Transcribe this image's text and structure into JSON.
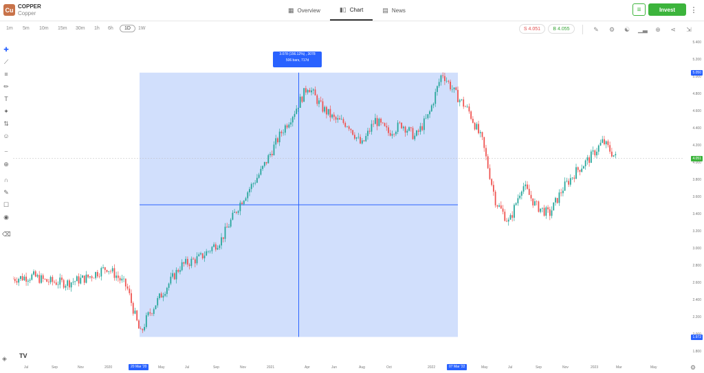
{
  "instrument": {
    "logo_text": "Cu",
    "symbol": "COPPER",
    "name": "Copper"
  },
  "nav": {
    "tabs": [
      {
        "label": "Overview",
        "icon": "grid-icon"
      },
      {
        "label": "Chart",
        "icon": "candles-icon",
        "active": true
      },
      {
        "label": "News",
        "icon": "newspaper-icon"
      }
    ]
  },
  "actions": {
    "invest_label": "Invest",
    "watchlist_icon": "add-to-watchlist-icon",
    "more_icon": "more-vertical-icon"
  },
  "timeframes": [
    "1m",
    "5m",
    "10m",
    "15m",
    "30m",
    "1h",
    "6h",
    "1D",
    "1W"
  ],
  "active_timeframe": "1D",
  "quotes": {
    "sell_label": "S 4.051",
    "buy_label": "B 4.055"
  },
  "right_tools": [
    "pencil-icon",
    "settings-icon",
    "compare-icon",
    "indicators-icon",
    "add-icon",
    "share-icon",
    "fullscreen-icon"
  ],
  "left_tools": [
    "crosshair-icon",
    "trendline-icon",
    "fib-icon",
    "brush-icon",
    "text-icon",
    "pattern-icon",
    "prediction-icon",
    "emoji-icon",
    "ruler-icon",
    "zoom-icon",
    "magnet-icon",
    "lock-drawing-icon",
    "lock-icon",
    "eye-icon",
    "trash-icon"
  ],
  "measure": {
    "line1": "3.078 (156.12%) , 3078",
    "line2": "506 bars, 717d"
  },
  "colors": {
    "up": "#26a69a",
    "down": "#ef5350",
    "measure_fill": "#c5d7fb",
    "measure_line": "#2962ff",
    "invest": "#3cb43c"
  },
  "chart_data": {
    "type": "line",
    "title": "",
    "xlabel": "",
    "ylabel": "",
    "ylim": [
      1.8,
      5.4
    ],
    "price_labels": [
      "5.400",
      "5.200",
      "5.000",
      "4.800",
      "4.600",
      "4.400",
      "4.200",
      "4.000",
      "3.800",
      "3.600",
      "3.400",
      "3.200",
      "3.000",
      "2.800",
      "2.600",
      "2.400",
      "2.200",
      "2.000",
      "1.800"
    ],
    "current_price_tag": "4.051",
    "high_tag": "5.050",
    "low_tag": "1.972",
    "x_labels": [
      "Jul",
      "Sep",
      "Nov",
      "2020",
      "May",
      "Jul",
      "Sep",
      "Nov",
      "2021",
      "Apr",
      "Jun",
      "Aug",
      "Oct",
      "2022",
      "May",
      "Jul",
      "Sep",
      "Nov",
      "2023",
      "Mar",
      "May"
    ],
    "start_date_tag": "20 Mar '20",
    "end_date_tag": "07 Mar '22",
    "series": [
      {
        "x": [
          0,
          0.03,
          0.05,
          0.08,
          0.11,
          0.14,
          0.155,
          0.17,
          0.19,
          0.2,
          0.22,
          0.25,
          0.28,
          0.31,
          0.34,
          0.37,
          0.4,
          0.42,
          0.44,
          0.46,
          0.48,
          0.5,
          0.52,
          0.54,
          0.56,
          0.58,
          0.6,
          0.62,
          0.64,
          0.66,
          0.68,
          0.7,
          0.72,
          0.74,
          0.76,
          0.78,
          0.8,
          0.82,
          0.84,
          0.86,
          0.88,
          0.9
        ],
        "y": [
          2.65,
          2.68,
          2.62,
          2.6,
          2.66,
          2.78,
          2.68,
          2.55,
          2.0,
          2.2,
          2.45,
          2.8,
          2.9,
          3.1,
          3.55,
          3.9,
          4.35,
          4.6,
          4.9,
          4.65,
          4.5,
          4.45,
          4.2,
          4.5,
          4.35,
          4.45,
          4.3,
          4.55,
          5.05,
          4.8,
          4.6,
          4.25,
          3.55,
          3.3,
          3.75,
          3.5,
          3.4,
          3.7,
          3.9,
          4.05,
          4.25,
          4.05
        ]
      }
    ]
  }
}
